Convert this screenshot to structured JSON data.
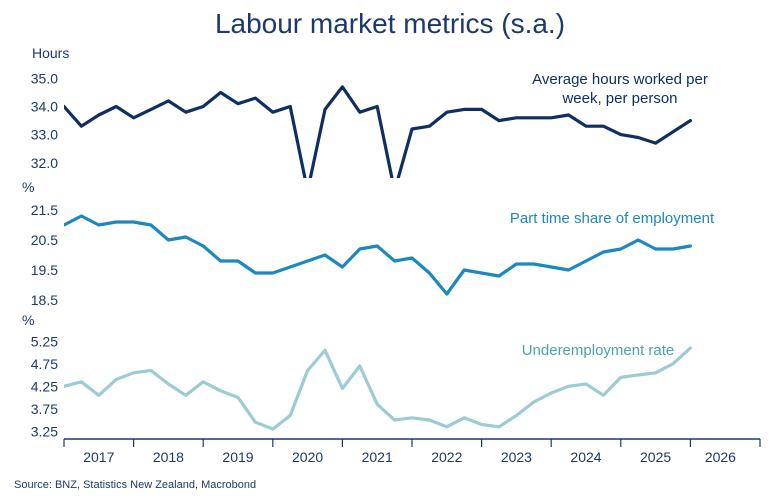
{
  "title": "Labour market metrics (s.a.)",
  "source": "Source: BNZ, Statistics New Zealand, Macrobond",
  "colors": {
    "title": "#1b3a6b",
    "axis": "#1b3a6b",
    "label1": "#0f2f63",
    "label2": "#1c88bd",
    "label3": "#4aa3a8"
  },
  "chart_data": [
    {
      "type": "line",
      "unit_label": "Hours",
      "series_label": "Average hours worked per week, per person",
      "label_lines": [
        "Average hours worked per",
        "week, per person"
      ],
      "color": "#0f2f63",
      "ylim": [
        31.6,
        35.3
      ],
      "yticks": [
        32.0,
        33.0,
        34.0,
        35.0
      ],
      "values": [
        34.0,
        33.3,
        33.7,
        34.0,
        33.6,
        33.9,
        34.2,
        33.8,
        34.0,
        34.5,
        34.1,
        34.3,
        33.8,
        34.0,
        31.0,
        33.9,
        34.7,
        33.8,
        34.0,
        31.0,
        33.2,
        33.3,
        33.8,
        33.9,
        33.9,
        33.5,
        33.6,
        33.6,
        33.6,
        33.7,
        33.3,
        33.3,
        33.0,
        32.9,
        32.7,
        33.1,
        33.5
      ]
    },
    {
      "type": "line",
      "unit_label": "%",
      "series_label": "Part time share of employment",
      "label_lines": [
        "Part time share of employment"
      ],
      "color": "#1c88bd",
      "ylim": [
        18.3,
        21.9
      ],
      "yticks": [
        18.5,
        19.5,
        20.5,
        21.5
      ],
      "values": [
        21.0,
        21.3,
        21.0,
        21.1,
        21.1,
        21.0,
        20.5,
        20.6,
        20.3,
        19.8,
        19.8,
        19.4,
        19.4,
        19.6,
        19.8,
        20.0,
        19.6,
        20.2,
        20.3,
        19.8,
        19.9,
        19.4,
        18.7,
        19.5,
        19.4,
        19.3,
        19.7,
        19.7,
        19.6,
        19.5,
        19.8,
        20.1,
        20.2,
        20.5,
        20.2,
        20.2,
        20.3
      ]
    },
    {
      "type": "line",
      "unit_label": "%",
      "series_label": "Underemployment rate",
      "label_lines": [
        "Underemployment rate"
      ],
      "color": "#9ccbd4",
      "ylim": [
        3.1,
        5.5
      ],
      "yticks": [
        3.25,
        3.75,
        4.25,
        4.75,
        5.25
      ],
      "values": [
        4.25,
        4.35,
        4.05,
        4.4,
        4.55,
        4.6,
        4.3,
        4.05,
        4.35,
        4.15,
        4.0,
        3.45,
        3.3,
        3.6,
        4.6,
        5.05,
        4.2,
        4.7,
        3.85,
        3.5,
        3.55,
        3.5,
        3.35,
        3.55,
        3.4,
        3.35,
        3.6,
        3.9,
        4.1,
        4.25,
        4.3,
        4.05,
        4.45,
        4.5,
        4.55,
        4.75,
        5.1
      ]
    }
  ],
  "x_axis": {
    "labels": [
      "2017",
      "2018",
      "2019",
      "2020",
      "2021",
      "2022",
      "2023",
      "2024",
      "2025",
      "2026"
    ]
  }
}
